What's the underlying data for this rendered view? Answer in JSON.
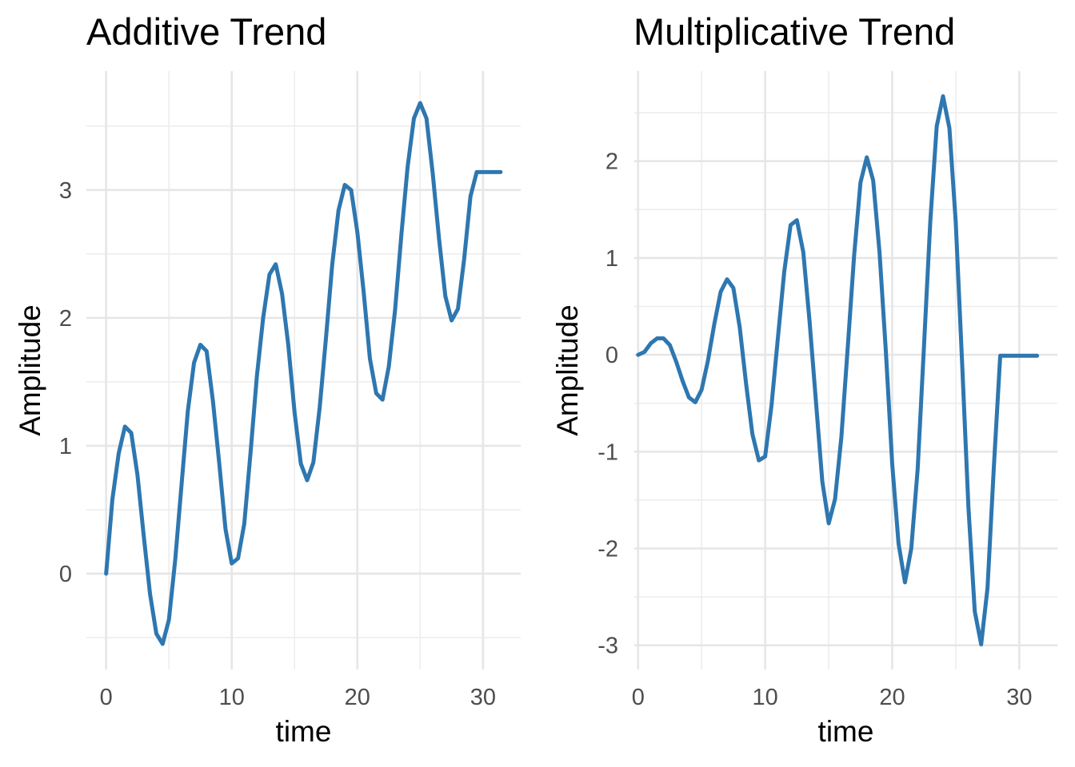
{
  "colors": {
    "line": "#2e77b0"
  },
  "chart_data": [
    {
      "type": "line",
      "title": "Additive Trend",
      "xlabel": "time",
      "ylabel": "Amplitude",
      "xlim": [
        -1.57,
        33.0
      ],
      "ylim": [
        -0.75,
        3.93
      ],
      "x_major_ticks": [
        0,
        10,
        20,
        30
      ],
      "x_minor_ticks": [
        5,
        15,
        25
      ],
      "y_major_ticks": [
        0,
        1,
        2,
        3
      ],
      "y_minor_ticks": [
        -0.5,
        0.5,
        1.5,
        2.5,
        3.5
      ],
      "x_tick_labels": [
        "0",
        "10",
        "20",
        "30"
      ],
      "y_tick_labels": [
        "0",
        "1",
        "2",
        "3"
      ],
      "grid": true,
      "series": [
        {
          "x": [
            0,
            0.5,
            1,
            1.5,
            2,
            2.5,
            3,
            3.5,
            4,
            4.5,
            5,
            5.5,
            6,
            6.5,
            7,
            7.5,
            8,
            8.5,
            9,
            9.5,
            10,
            10.5,
            11,
            11.5,
            12,
            12.5,
            13,
            13.5,
            14,
            14.5,
            15,
            15.5,
            16,
            16.5,
            17,
            17.5,
            18,
            18.5,
            19,
            19.5,
            20,
            20.5,
            21,
            21.5,
            22,
            22.5,
            23,
            23.5,
            24,
            24.5,
            25,
            25.5,
            26,
            26.5,
            27,
            27.5,
            28,
            28.5,
            29,
            29.5,
            30,
            30.5,
            31,
            31.4
          ],
          "y": [
            0.0,
            0.58,
            0.94,
            1.15,
            1.1,
            0.77,
            0.29,
            -0.16,
            -0.47,
            -0.55,
            -0.36,
            0.11,
            0.69,
            1.27,
            1.65,
            1.79,
            1.74,
            1.35,
            0.87,
            0.35,
            0.08,
            0.12,
            0.39,
            0.95,
            1.54,
            2.0,
            2.34,
            2.42,
            2.19,
            1.79,
            1.26,
            0.86,
            0.73,
            0.87,
            1.3,
            1.84,
            2.42,
            2.84,
            3.04,
            3.0,
            2.67,
            2.2,
            1.68,
            1.41,
            1.36,
            1.62,
            2.06,
            2.65,
            3.18,
            3.56,
            3.68,
            3.56,
            3.13,
            2.62,
            2.17,
            1.98,
            2.07,
            2.46,
            2.95,
            3.14,
            3.14,
            3.14,
            3.14,
            3.14
          ]
        }
      ]
    },
    {
      "type": "line",
      "title": "Multiplicative Trend",
      "xlabel": "time",
      "ylabel": "Amplitude",
      "xlim": [
        -0.3,
        33.0
      ],
      "ylim": [
        -3.25,
        2.93
      ],
      "x_major_ticks": [
        0,
        10,
        20,
        30
      ],
      "x_minor_ticks": [
        5,
        15,
        25
      ],
      "y_major_ticks": [
        -3,
        -2,
        -1,
        0,
        1,
        2
      ],
      "y_minor_ticks": [
        -2.5,
        -1.5,
        -0.5,
        0.5,
        1.5,
        2.5
      ],
      "x_tick_labels": [
        "0",
        "10",
        "20",
        "30"
      ],
      "y_tick_labels": [
        "-3",
        "-2",
        "-1",
        "0",
        "1",
        "2"
      ],
      "grid": true,
      "series": [
        {
          "x": [
            0,
            0.5,
            1,
            1.5,
            2,
            2.5,
            3,
            3.5,
            4,
            4.5,
            5,
            5.5,
            6,
            6.5,
            7,
            7.5,
            8,
            8.5,
            9,
            9.5,
            10,
            10.5,
            11,
            11.5,
            12,
            12.5,
            13,
            13.5,
            14,
            14.5,
            15,
            15.5,
            16,
            16.5,
            17,
            17.5,
            18,
            18.5,
            19,
            19.5,
            20,
            20.5,
            21,
            21.5,
            22,
            22.5,
            23,
            23.5,
            24,
            24.5,
            25,
            25.5,
            26,
            26.5,
            27,
            27.5,
            28,
            28.5,
            29,
            29.5,
            30,
            30.5,
            31,
            31.4
          ],
          "y": [
            0.0,
            0.03,
            0.12,
            0.17,
            0.17,
            0.1,
            -0.07,
            -0.27,
            -0.44,
            -0.49,
            -0.36,
            -0.06,
            0.32,
            0.65,
            0.78,
            0.69,
            0.28,
            -0.3,
            -0.82,
            -1.09,
            -1.05,
            -0.52,
            0.17,
            0.86,
            1.34,
            1.39,
            1.06,
            0.34,
            -0.49,
            -1.31,
            -1.74,
            -1.49,
            -0.85,
            0.08,
            1.02,
            1.78,
            2.04,
            1.8,
            1.06,
            0.04,
            -1.13,
            -1.95,
            -2.35,
            -2.0,
            -1.18,
            0.09,
            1.38,
            2.36,
            2.67,
            2.34,
            1.37,
            -0.09,
            -1.58,
            -2.65,
            -2.99,
            -2.41,
            -1.15,
            -0.01,
            -0.01,
            -0.01,
            -0.01,
            -0.01,
            -0.01,
            -0.01
          ]
        }
      ]
    }
  ]
}
